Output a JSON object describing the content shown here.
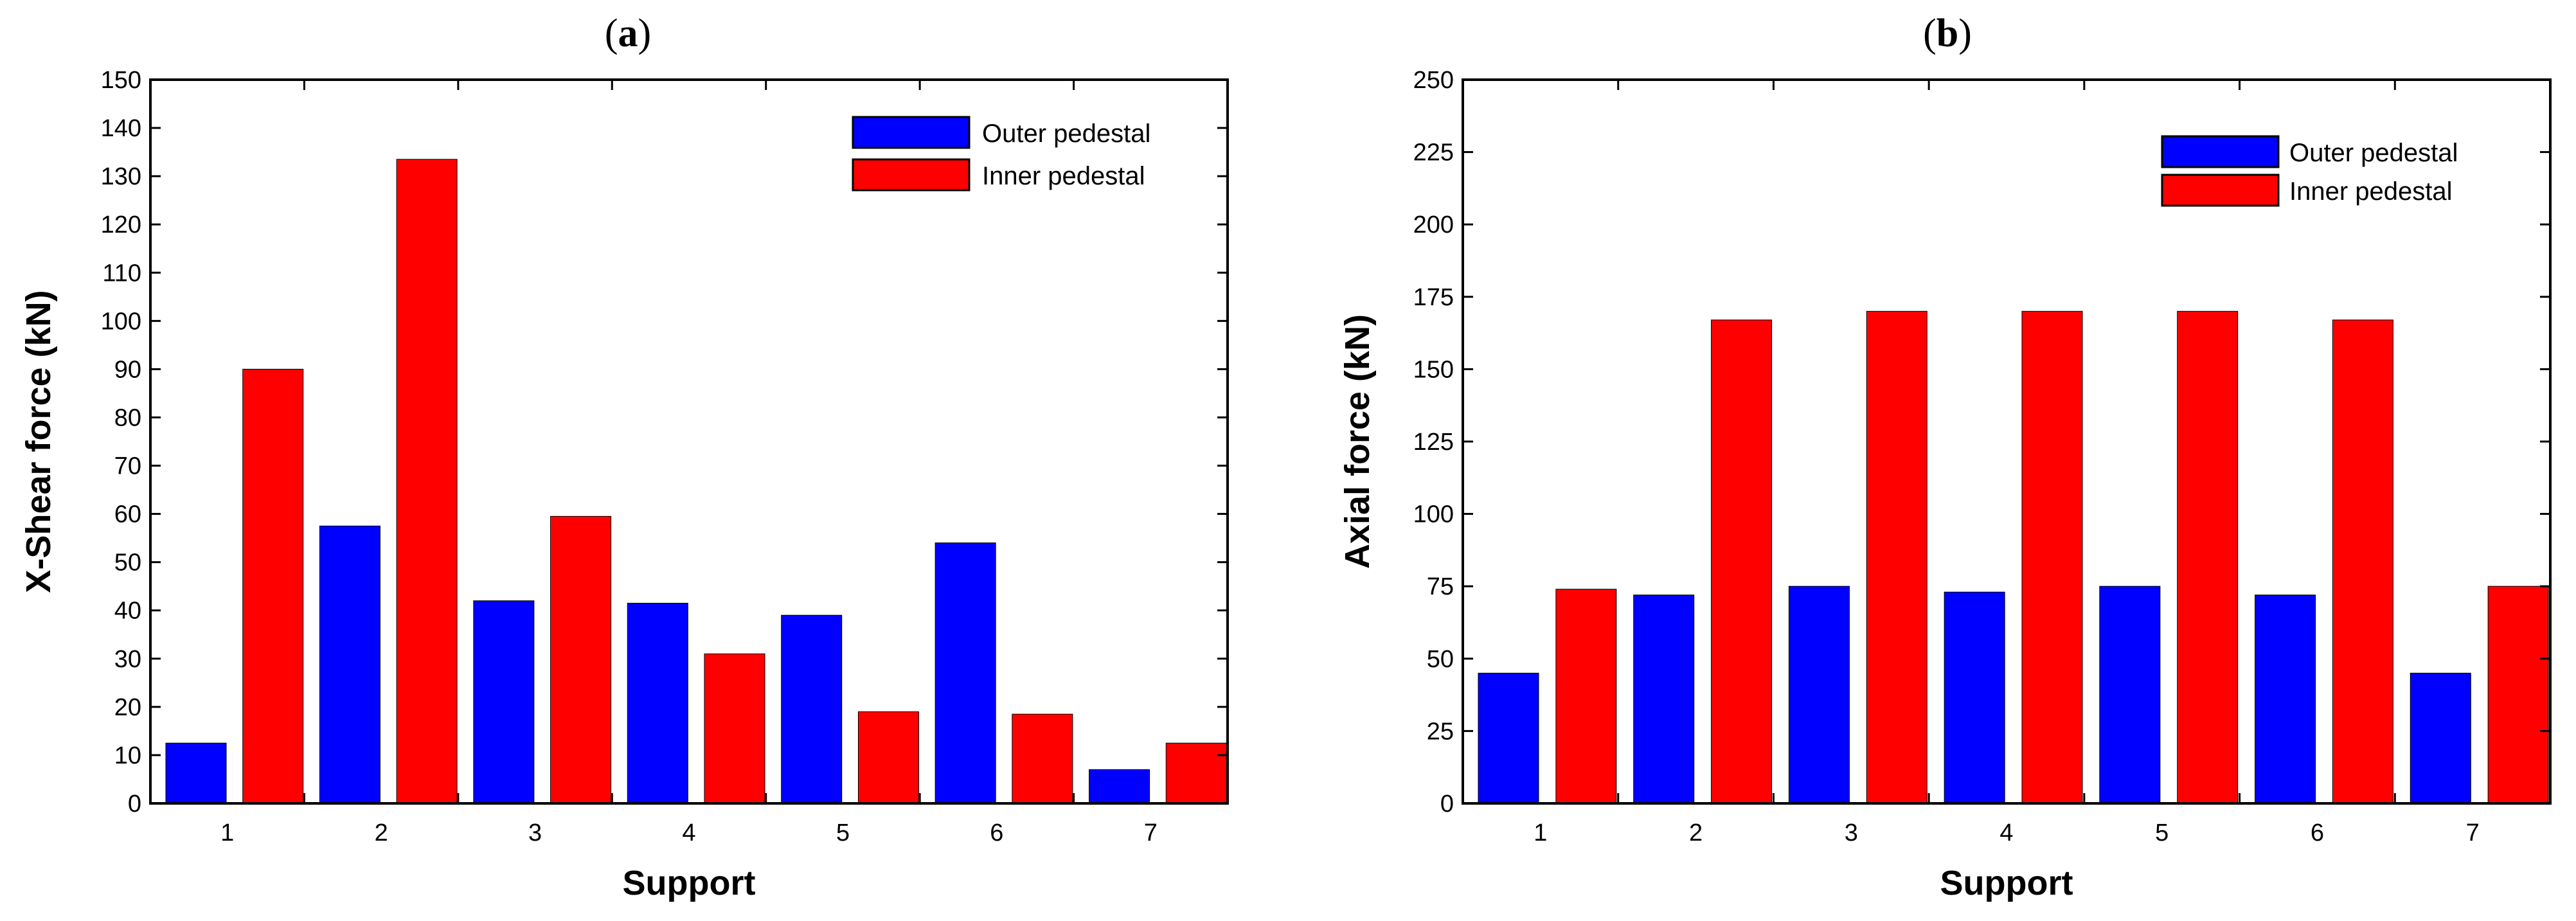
{
  "colors": {
    "outer": "#0000ff",
    "inner": "#ff0000",
    "axis": "#000000"
  },
  "chart_data": [
    {
      "type": "bar",
      "panel_label": "a",
      "title": "(a)",
      "xlabel": "Support",
      "ylabel": "X-Shear force (kN)",
      "categories": [
        "1",
        "2",
        "3",
        "4",
        "5",
        "6",
        "7"
      ],
      "ylim": [
        0,
        150
      ],
      "ytick_step": 10,
      "grid": false,
      "legend_position": "top-right",
      "series": [
        {
          "name": "Outer pedestal",
          "color": "#0000ff",
          "values": [
            12.5,
            57.5,
            42,
            41.5,
            39,
            54,
            7
          ]
        },
        {
          "name": "Inner pedestal",
          "color": "#ff0000",
          "values": [
            90,
            133.5,
            59.5,
            31,
            19,
            18.5,
            12.5
          ]
        }
      ]
    },
    {
      "type": "bar",
      "panel_label": "b",
      "title": "(b)",
      "xlabel": "Support",
      "ylabel": "Axial force (kN)",
      "categories": [
        "1",
        "2",
        "3",
        "4",
        "5",
        "6",
        "7"
      ],
      "ylim": [
        0,
        250
      ],
      "ytick_step": 25,
      "grid": false,
      "legend_position": "top-right",
      "series": [
        {
          "name": "Outer pedestal",
          "color": "#0000ff",
          "values": [
            45,
            72,
            75,
            73,
            75,
            72,
            45
          ]
        },
        {
          "name": "Inner pedestal",
          "color": "#ff0000",
          "values": [
            74,
            167,
            170,
            170,
            170,
            167,
            75
          ]
        }
      ]
    }
  ]
}
